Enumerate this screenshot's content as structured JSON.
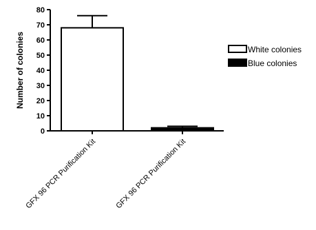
{
  "chart_data": {
    "type": "bar",
    "ylabel": "Number of colonies",
    "xlabel": "",
    "ylim": [
      0,
      80
    ],
    "yticks": [
      0,
      10,
      20,
      30,
      40,
      50,
      60,
      70,
      80
    ],
    "categories": [
      "GFX 96 PCR Purification Kit",
      "GFX 96 PCR Purification Kit"
    ],
    "series": [
      {
        "name": "White colonies",
        "values": [
          68,
          null
        ],
        "errors": [
          8,
          null
        ],
        "color": "#ffffff"
      },
      {
        "name": "Blue colonies",
        "values": [
          null,
          2
        ],
        "errors": [
          null,
          1
        ],
        "color": "#000000"
      }
    ],
    "legend": [
      {
        "label": "White colonies",
        "color": "#ffffff"
      },
      {
        "label": "Blue colonies",
        "color": "#000000"
      }
    ],
    "legend_position": "right",
    "grid": false
  }
}
